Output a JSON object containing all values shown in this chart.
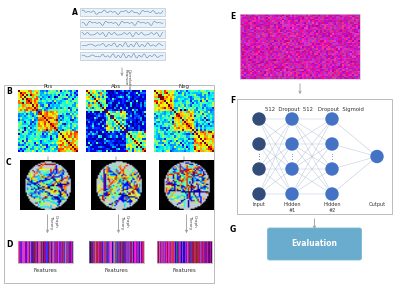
{
  "bg_color": "#ffffff",
  "panel_A_label": "A",
  "panel_B_label": "B",
  "panel_C_label": "C",
  "panel_D_label": "D",
  "panel_E_label": "E",
  "panel_F_label": "F",
  "panel_G_label": "G",
  "pos_label": "Pos",
  "abs_label": "Abs",
  "neg_label": "Neg",
  "pearson_label": "Pearson\nCorrelation",
  "threshold_label": "Threshold",
  "graph_theory_label": "Graph\nTheory",
  "features_label": "Features",
  "nn_label": "512  Dropout  512   Dropout  Sigmoid",
  "input_label": "Input",
  "hidden1_label": "Hidden\n#1",
  "hidden2_label": "Hidden\n#2",
  "output_label": "Output",
  "evaluation_label": "Evaluation",
  "node_color_input": "#334d7a",
  "node_color_hidden": "#4472c4",
  "node_color_output": "#4472c4",
  "evaluation_box_color": "#6aacce",
  "arrow_color": "#999999"
}
